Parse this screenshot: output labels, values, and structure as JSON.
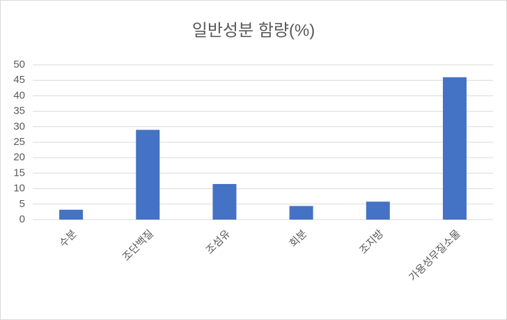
{
  "chart_data": {
    "type": "bar",
    "title": "일반성분 함량(%)",
    "categories": [
      "수분",
      "조단백질",
      "조섬유",
      "회분",
      "조지방",
      "가용성무질소물"
    ],
    "values": [
      3.2,
      29,
      11.5,
      4.4,
      5.8,
      46
    ],
    "color": "#4472c4",
    "ylim": [
      0,
      50
    ],
    "yticks": [
      0,
      5,
      10,
      15,
      20,
      25,
      30,
      35,
      40,
      45,
      50
    ],
    "grid": true
  }
}
